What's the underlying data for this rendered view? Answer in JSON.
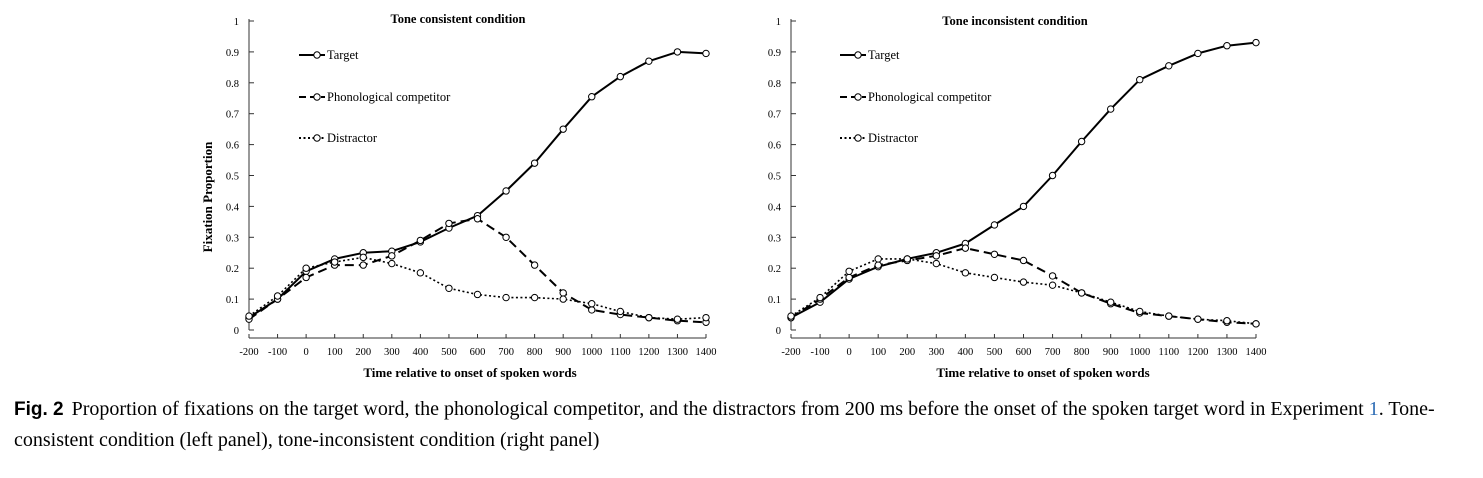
{
  "chart_data": [
    {
      "type": "line",
      "title": "Tone consistent condition",
      "xlabel": "Time relative to onset of spoken words",
      "ylabel": "Fixation Proportion",
      "x": [
        -200,
        -100,
        0,
        100,
        200,
        300,
        400,
        500,
        600,
        700,
        800,
        900,
        1000,
        1100,
        1200,
        1300,
        1400
      ],
      "xticks": [
        "-200",
        "-100",
        "0",
        "100",
        "200",
        "300",
        "400",
        "500",
        "600",
        "700",
        "800",
        "900",
        "1000",
        "1100",
        "1200",
        "1300",
        "1400"
      ],
      "yticks": [
        "0",
        "0.1",
        "0.2",
        "0.3",
        "0.4",
        "0.5",
        "0.6",
        "0.7",
        "0.8",
        "0.9",
        "1"
      ],
      "xlim": [
        -200,
        1400
      ],
      "ylim": [
        0,
        1
      ],
      "grid": false,
      "legend_position": "top-left",
      "series": [
        {
          "name": "Target",
          "style": "solid",
          "values": [
            0.04,
            0.1,
            0.19,
            0.23,
            0.25,
            0.255,
            0.285,
            0.33,
            0.37,
            0.45,
            0.54,
            0.65,
            0.755,
            0.82,
            0.87,
            0.9,
            0.895
          ]
        },
        {
          "name": "Phonological competitor",
          "style": "dashed",
          "values": [
            0.035,
            0.1,
            0.17,
            0.21,
            0.21,
            0.24,
            0.29,
            0.345,
            0.36,
            0.3,
            0.21,
            0.12,
            0.065,
            0.05,
            0.04,
            0.03,
            0.025
          ]
        },
        {
          "name": "Distractor",
          "style": "dotted",
          "values": [
            0.045,
            0.11,
            0.2,
            0.22,
            0.235,
            0.215,
            0.185,
            0.135,
            0.115,
            0.105,
            0.105,
            0.1,
            0.085,
            0.06,
            0.04,
            0.035,
            0.04
          ]
        }
      ]
    },
    {
      "type": "line",
      "title": "Tone inconsistent condition",
      "xlabel": "Time relative to onset of spoken words",
      "ylabel": "",
      "x": [
        -200,
        -100,
        0,
        100,
        200,
        300,
        400,
        500,
        600,
        700,
        800,
        900,
        1000,
        1100,
        1200,
        1300,
        1400
      ],
      "xticks": [
        "-200",
        "-100",
        "0",
        "100",
        "200",
        "300",
        "400",
        "500",
        "600",
        "700",
        "800",
        "900",
        "1000",
        "1100",
        "1200",
        "1300",
        "1400"
      ],
      "yticks": [
        "0",
        "0.1",
        "0.2",
        "0.3",
        "0.4",
        "0.5",
        "0.6",
        "0.7",
        "0.8",
        "0.9",
        "1"
      ],
      "xlim": [
        -200,
        1400
      ],
      "ylim": [
        0,
        1
      ],
      "grid": false,
      "legend_position": "top-left",
      "series": [
        {
          "name": "Target",
          "style": "solid",
          "values": [
            0.04,
            0.09,
            0.165,
            0.205,
            0.23,
            0.25,
            0.28,
            0.34,
            0.4,
            0.5,
            0.61,
            0.715,
            0.81,
            0.855,
            0.895,
            0.92,
            0.93
          ]
        },
        {
          "name": "Phonological competitor",
          "style": "dashed",
          "values": [
            0.04,
            0.1,
            0.17,
            0.21,
            0.225,
            0.24,
            0.265,
            0.245,
            0.225,
            0.175,
            0.12,
            0.085,
            0.055,
            0.045,
            0.035,
            0.025,
            0.02
          ]
        },
        {
          "name": "Distractor",
          "style": "dotted",
          "values": [
            0.045,
            0.105,
            0.19,
            0.23,
            0.23,
            0.215,
            0.185,
            0.17,
            0.155,
            0.145,
            0.12,
            0.09,
            0.06,
            0.045,
            0.035,
            0.03,
            0.02
          ]
        }
      ]
    }
  ],
  "caption": {
    "label": "Fig. 2",
    "text_before_ref": "Proportion of fixations on the target word, the phonological competitor, and the distractors from 200 ms before the onset of the spoken target word in Experiment ",
    "ref": "1",
    "text_after_ref": ". Tone-consistent condition (left panel), tone-inconsistent condition (right panel)"
  }
}
